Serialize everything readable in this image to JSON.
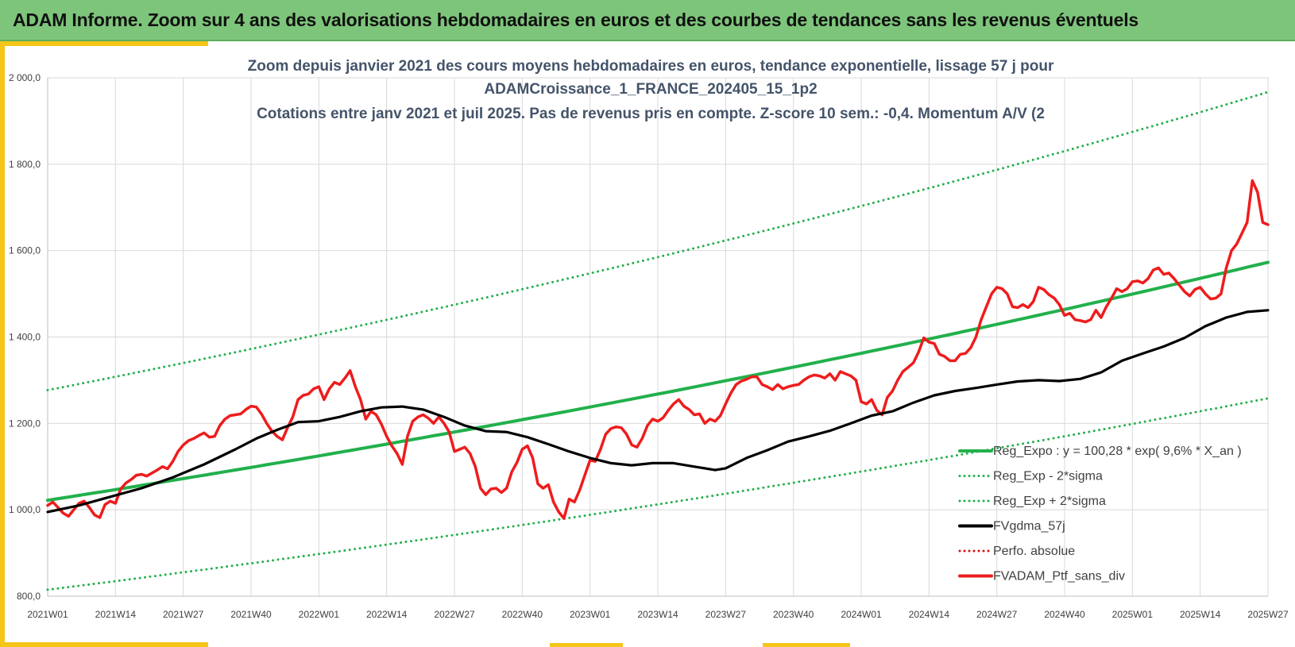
{
  "header": {
    "title": "ADAM Informe. Zoom sur 4 ans des valorisations hebdomadaires en euros et des courbes de tendances sans les revenus éventuels"
  },
  "colors": {
    "header_bg": "#7dc57a",
    "accent": "#f5c518",
    "trend": "#22b04c",
    "sma": "#000000",
    "price": "#ee1c1c",
    "perf": "#d91010",
    "title_text": "#44546a"
  },
  "chart_data": {
    "type": "line",
    "title_lines": [
      "Zoom depuis janvier 2021 des cours moyens hebdomadaires  en euros, tendance exponentielle, lissage 57 j pour",
      "ADAMCroissance_1_FRANCE_202405_15_1p2",
      "Cotations entre janv 2021 et juil 2025. Pas de revenus pris en compte. Z-score 10 sem.: -0,4. Momentum A/V (2"
    ],
    "x_tick_labels": [
      "2021W01",
      "2021W14",
      "2021W27",
      "2021W40",
      "2022W01",
      "2022W14",
      "2022W27",
      "2022W40",
      "2023W01",
      "2023W14",
      "2023W27",
      "2023W40",
      "2024W01",
      "2024W14",
      "2024W27",
      "2024W40",
      "2025W01",
      "2025W14",
      "2025W27"
    ],
    "y_ticks": [
      800,
      1000,
      1200,
      1400,
      1600,
      1800,
      2000
    ],
    "y_tick_labels": [
      "800,0",
      "1 000,0",
      "1 200,0",
      "1 400,0",
      "1 600,0",
      "1 800,0",
      "2 000,0"
    ],
    "ylim": [
      800,
      2000
    ],
    "x_range_weeks": [
      0,
      234
    ],
    "grid": true,
    "legend_position": "right",
    "series": [
      {
        "name": "Reg_Expo : y = 100,28 * exp( 9,6% *  X_an )",
        "style": "solid-thick",
        "color": "#22b04c",
        "start": 1022,
        "end": 1573
      },
      {
        "name": "Reg_Exp - 2*sigma",
        "style": "dotted",
        "color": "#22b04c",
        "start": 815,
        "end": 1258
      },
      {
        "name": "Reg_Exp + 2*sigma",
        "style": "dotted",
        "color": "#22b04c",
        "start": 1277,
        "end": 1967
      },
      {
        "name": "FVgdma_57j",
        "style": "solid",
        "color": "#000000",
        "points": [
          [
            0,
            995
          ],
          [
            6,
            1010
          ],
          [
            12,
            1030
          ],
          [
            18,
            1050
          ],
          [
            24,
            1075
          ],
          [
            30,
            1105
          ],
          [
            36,
            1140
          ],
          [
            40,
            1165
          ],
          [
            44,
            1185
          ],
          [
            48,
            1203
          ],
          [
            52,
            1205
          ],
          [
            56,
            1215
          ],
          [
            60,
            1228
          ],
          [
            64,
            1237
          ],
          [
            68,
            1239
          ],
          [
            72,
            1232
          ],
          [
            76,
            1215
          ],
          [
            80,
            1195
          ],
          [
            84,
            1182
          ],
          [
            88,
            1180
          ],
          [
            92,
            1168
          ],
          [
            96,
            1152
          ],
          [
            100,
            1135
          ],
          [
            104,
            1120
          ],
          [
            108,
            1108
          ],
          [
            112,
            1103
          ],
          [
            116,
            1108
          ],
          [
            120,
            1108
          ],
          [
            124,
            1100
          ],
          [
            128,
            1092
          ],
          [
            130,
            1096
          ],
          [
            134,
            1120
          ],
          [
            138,
            1138
          ],
          [
            142,
            1158
          ],
          [
            146,
            1170
          ],
          [
            150,
            1183
          ],
          [
            154,
            1200
          ],
          [
            158,
            1218
          ],
          [
            162,
            1228
          ],
          [
            166,
            1248
          ],
          [
            170,
            1265
          ],
          [
            174,
            1275
          ],
          [
            178,
            1282
          ],
          [
            182,
            1290
          ],
          [
            186,
            1297
          ],
          [
            190,
            1300
          ],
          [
            194,
            1298
          ],
          [
            198,
            1303
          ],
          [
            202,
            1318
          ],
          [
            206,
            1345
          ],
          [
            210,
            1362
          ],
          [
            214,
            1378
          ],
          [
            218,
            1398
          ],
          [
            222,
            1425
          ],
          [
            226,
            1445
          ],
          [
            230,
            1458
          ],
          [
            234,
            1462
          ]
        ]
      },
      {
        "name": "Perfo. absolue",
        "style": "dotted",
        "color": "#d91010",
        "points": []
      },
      {
        "name": "FVADAM_Ptf_sans_div",
        "style": "solid",
        "color": "#ee1c1c",
        "points": [
          [
            0,
            1010
          ],
          [
            1,
            1018
          ],
          [
            2,
            1005
          ],
          [
            3,
            992
          ],
          [
            4,
            985
          ],
          [
            5,
            1000
          ],
          [
            6,
            1015
          ],
          [
            7,
            1020
          ],
          [
            8,
            1005
          ],
          [
            9,
            988
          ],
          [
            10,
            982
          ],
          [
            11,
            1012
          ],
          [
            12,
            1020
          ],
          [
            13,
            1015
          ],
          [
            14,
            1048
          ],
          [
            15,
            1062
          ],
          [
            16,
            1070
          ],
          [
            17,
            1080
          ],
          [
            18,
            1082
          ],
          [
            19,
            1078
          ],
          [
            20,
            1085
          ],
          [
            21,
            1092
          ],
          [
            22,
            1100
          ],
          [
            23,
            1095
          ],
          [
            24,
            1112
          ],
          [
            25,
            1135
          ],
          [
            26,
            1150
          ],
          [
            27,
            1160
          ],
          [
            28,
            1165
          ],
          [
            29,
            1172
          ],
          [
            30,
            1178
          ],
          [
            31,
            1168
          ],
          [
            32,
            1170
          ],
          [
            33,
            1195
          ],
          [
            34,
            1210
          ],
          [
            35,
            1218
          ],
          [
            36,
            1220
          ],
          [
            37,
            1222
          ],
          [
            38,
            1232
          ],
          [
            39,
            1240
          ],
          [
            40,
            1238
          ],
          [
            41,
            1222
          ],
          [
            42,
            1200
          ],
          [
            43,
            1182
          ],
          [
            44,
            1170
          ],
          [
            45,
            1162
          ],
          [
            46,
            1190
          ],
          [
            47,
            1215
          ],
          [
            48,
            1255
          ],
          [
            49,
            1265
          ],
          [
            50,
            1268
          ],
          [
            51,
            1280
          ],
          [
            52,
            1285
          ],
          [
            53,
            1255
          ],
          [
            54,
            1280
          ],
          [
            55,
            1295
          ],
          [
            56,
            1290
          ],
          [
            57,
            1305
          ],
          [
            58,
            1322
          ],
          [
            59,
            1285
          ],
          [
            60,
            1255
          ],
          [
            61,
            1210
          ],
          [
            62,
            1228
          ],
          [
            63,
            1220
          ],
          [
            64,
            1198
          ],
          [
            65,
            1170
          ],
          [
            66,
            1148
          ],
          [
            67,
            1130
          ],
          [
            68,
            1105
          ],
          [
            69,
            1170
          ],
          [
            70,
            1205
          ],
          [
            71,
            1215
          ],
          [
            72,
            1220
          ],
          [
            73,
            1212
          ],
          [
            74,
            1200
          ],
          [
            75,
            1215
          ],
          [
            76,
            1200
          ],
          [
            77,
            1180
          ],
          [
            78,
            1135
          ],
          [
            79,
            1140
          ],
          [
            80,
            1145
          ],
          [
            81,
            1130
          ],
          [
            82,
            1100
          ],
          [
            83,
            1050
          ],
          [
            84,
            1035
          ],
          [
            85,
            1048
          ],
          [
            86,
            1050
          ],
          [
            87,
            1040
          ],
          [
            88,
            1050
          ],
          [
            89,
            1088
          ],
          [
            90,
            1110
          ],
          [
            91,
            1140
          ],
          [
            92,
            1148
          ],
          [
            93,
            1120
          ],
          [
            94,
            1060
          ],
          [
            95,
            1050
          ],
          [
            96,
            1058
          ],
          [
            97,
            1018
          ],
          [
            98,
            995
          ],
          [
            99,
            980
          ],
          [
            100,
            1025
          ],
          [
            101,
            1018
          ],
          [
            102,
            1045
          ],
          [
            103,
            1080
          ],
          [
            104,
            1115
          ],
          [
            105,
            1112
          ],
          [
            106,
            1140
          ],
          [
            107,
            1175
          ],
          [
            108,
            1188
          ],
          [
            109,
            1192
          ],
          [
            110,
            1190
          ],
          [
            111,
            1175
          ],
          [
            112,
            1150
          ],
          [
            113,
            1145
          ],
          [
            114,
            1165
          ],
          [
            115,
            1195
          ],
          [
            116,
            1210
          ],
          [
            117,
            1205
          ],
          [
            118,
            1213
          ],
          [
            119,
            1230
          ],
          [
            120,
            1245
          ],
          [
            121,
            1255
          ],
          [
            122,
            1240
          ],
          [
            123,
            1232
          ],
          [
            124,
            1220
          ],
          [
            125,
            1222
          ],
          [
            126,
            1200
          ],
          [
            127,
            1210
          ],
          [
            128,
            1205
          ],
          [
            129,
            1218
          ],
          [
            130,
            1245
          ],
          [
            131,
            1270
          ],
          [
            132,
            1290
          ],
          [
            133,
            1298
          ],
          [
            134,
            1302
          ],
          [
            135,
            1308
          ],
          [
            136,
            1308
          ],
          [
            137,
            1290
          ],
          [
            138,
            1285
          ],
          [
            139,
            1278
          ],
          [
            140,
            1290
          ],
          [
            141,
            1280
          ],
          [
            142,
            1285
          ],
          [
            143,
            1288
          ],
          [
            144,
            1290
          ],
          [
            145,
            1300
          ],
          [
            146,
            1308
          ],
          [
            147,
            1312
          ],
          [
            148,
            1310
          ],
          [
            149,
            1305
          ],
          [
            150,
            1315
          ],
          [
            151,
            1300
          ],
          [
            152,
            1320
          ],
          [
            153,
            1315
          ],
          [
            154,
            1310
          ],
          [
            155,
            1300
          ],
          [
            156,
            1250
          ],
          [
            157,
            1245
          ],
          [
            158,
            1255
          ],
          [
            159,
            1230
          ],
          [
            160,
            1220
          ],
          [
            161,
            1260
          ],
          [
            162,
            1275
          ],
          [
            163,
            1300
          ],
          [
            164,
            1320
          ],
          [
            165,
            1330
          ],
          [
            166,
            1340
          ],
          [
            167,
            1365
          ],
          [
            168,
            1398
          ],
          [
            169,
            1388
          ],
          [
            170,
            1385
          ],
          [
            171,
            1360
          ],
          [
            172,
            1355
          ],
          [
            173,
            1345
          ],
          [
            174,
            1345
          ],
          [
            175,
            1360
          ],
          [
            176,
            1362
          ],
          [
            177,
            1375
          ],
          [
            178,
            1400
          ],
          [
            179,
            1440
          ],
          [
            180,
            1470
          ],
          [
            181,
            1500
          ],
          [
            182,
            1515
          ],
          [
            183,
            1512
          ],
          [
            184,
            1500
          ],
          [
            185,
            1470
          ],
          [
            186,
            1468
          ],
          [
            187,
            1475
          ],
          [
            188,
            1468
          ],
          [
            189,
            1482
          ],
          [
            190,
            1515
          ],
          [
            191,
            1510
          ],
          [
            192,
            1498
          ],
          [
            193,
            1490
          ],
          [
            194,
            1475
          ],
          [
            195,
            1450
          ],
          [
            196,
            1455
          ],
          [
            197,
            1440
          ],
          [
            198,
            1438
          ],
          [
            199,
            1435
          ],
          [
            200,
            1440
          ],
          [
            201,
            1462
          ],
          [
            202,
            1445
          ],
          [
            203,
            1470
          ],
          [
            204,
            1490
          ],
          [
            205,
            1512
          ],
          [
            206,
            1505
          ],
          [
            207,
            1512
          ],
          [
            208,
            1528
          ],
          [
            209,
            1530
          ],
          [
            210,
            1525
          ],
          [
            211,
            1535
          ],
          [
            212,
            1555
          ],
          [
            213,
            1560
          ],
          [
            214,
            1545
          ],
          [
            215,
            1548
          ],
          [
            216,
            1535
          ],
          [
            217,
            1520
          ],
          [
            218,
            1505
          ],
          [
            219,
            1495
          ],
          [
            220,
            1510
          ],
          [
            221,
            1515
          ],
          [
            222,
            1500
          ],
          [
            223,
            1488
          ],
          [
            224,
            1490
          ],
          [
            225,
            1500
          ],
          [
            226,
            1560
          ],
          [
            227,
            1600
          ],
          [
            228,
            1615
          ],
          [
            229,
            1640
          ],
          [
            230,
            1665
          ],
          [
            231,
            1762
          ],
          [
            232,
            1735
          ],
          [
            233,
            1665
          ],
          [
            234,
            1660
          ]
        ]
      }
    ]
  }
}
